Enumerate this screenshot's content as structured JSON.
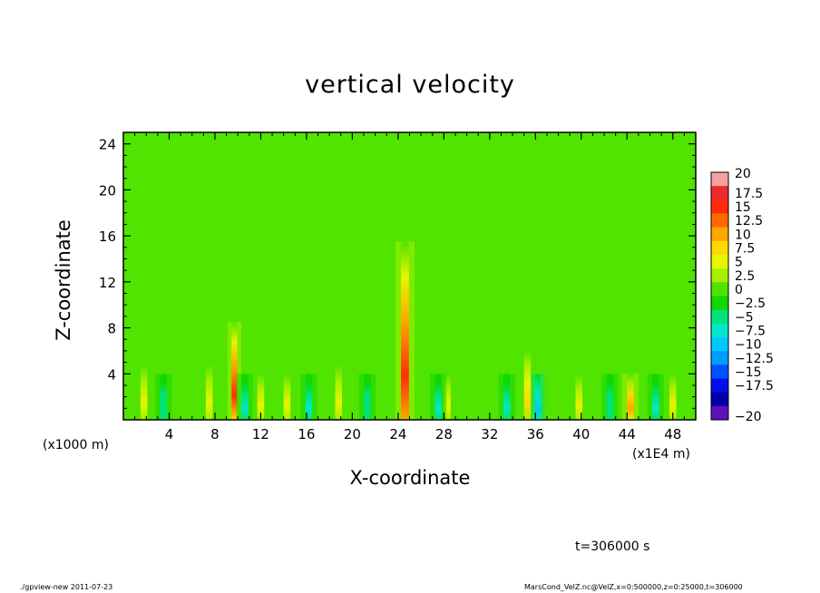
{
  "chart_data": {
    "type": "heatmap",
    "title": "vertical velocity",
    "xlabel": "X-coordinate",
    "ylabel": "Z-coordinate",
    "x_multiplier": "(x1E4 m)",
    "y_multiplier": "(x1000 m)",
    "xlim": [
      0,
      50
    ],
    "ylim": [
      0,
      25
    ],
    "x_ticks": [
      4,
      8,
      12,
      16,
      20,
      24,
      28,
      32,
      36,
      40,
      44,
      48
    ],
    "y_ticks": [
      4,
      8,
      12,
      16,
      20,
      24
    ],
    "colorbar": {
      "levels": [
        20,
        17.5,
        15,
        12.5,
        10,
        7.5,
        5,
        2.5,
        0,
        -2.5,
        -5,
        -7.5,
        -10,
        -12.5,
        -15,
        -17.5,
        -20
      ],
      "level_labels": [
        "20",
        "17.5",
        "15",
        "12.5",
        "10",
        "7.5",
        "5",
        "2.5",
        "0",
        "−2.5",
        "−5",
        "−7.5",
        "−10",
        "−12.5",
        "−15",
        "−17.5",
        "−20"
      ],
      "colors": [
        "#f4a0a0",
        "#ee2a2a",
        "#ff2c0c",
        "#ff6a00",
        "#ffa600",
        "#ffd800",
        "#e8f400",
        "#a6f000",
        "#50e400",
        "#10d800",
        "#00e27a",
        "#00e8c8",
        "#00c8ff",
        "#009cff",
        "#0050ff",
        "#0010e8",
        "#0000a8",
        "#6010b8"
      ]
    },
    "field": {
      "background_value": 0,
      "features": [
        {
          "x": 24.6,
          "z_top": 15.5,
          "amplitude": 17,
          "width": 0.35
        },
        {
          "x": 9.7,
          "z_top": 8.5,
          "amplitude": 15,
          "width": 0.25
        },
        {
          "x": 44.3,
          "z_top": 4,
          "amplitude": 12,
          "width": 0.3
        },
        {
          "x": 35.3,
          "z_top": 6,
          "amplitude": 8,
          "width": 0.3
        },
        {
          "x": 7.5,
          "z_top": 6,
          "amplitude": 7,
          "width": 0.3
        },
        {
          "x": 1.8,
          "z_top": 6,
          "amplitude": 6,
          "width": 0.3
        },
        {
          "x": 18.8,
          "z_top": 6,
          "amplitude": 6,
          "width": 0.3
        },
        {
          "x": 28.3,
          "z_top": 5,
          "amplitude": 6,
          "width": 0.3
        },
        {
          "x": 14.3,
          "z_top": 5,
          "amplitude": 5,
          "width": 0.3
        },
        {
          "x": 39.8,
          "z_top": 5,
          "amplitude": 6,
          "width": 0.3
        },
        {
          "x": 12.0,
          "z_top": 5,
          "amplitude": 5,
          "width": 0.3
        },
        {
          "x": 48.0,
          "z_top": 5,
          "amplitude": 5,
          "width": 0.3
        },
        {
          "x": 36.2,
          "z_top": 4,
          "amplitude": -10,
          "width": 0.25
        },
        {
          "x": 10.6,
          "z_top": 4,
          "amplitude": -7,
          "width": 0.3
        },
        {
          "x": 27.5,
          "z_top": 4,
          "amplitude": -7,
          "width": 0.3
        },
        {
          "x": 33.5,
          "z_top": 4,
          "amplitude": -6,
          "width": 0.3
        },
        {
          "x": 16.2,
          "z_top": 4,
          "amplitude": -6,
          "width": 0.3
        },
        {
          "x": 46.5,
          "z_top": 4,
          "amplitude": -6,
          "width": 0.3
        },
        {
          "x": 3.5,
          "z_top": 4,
          "amplitude": -5,
          "width": 0.3
        },
        {
          "x": 21.3,
          "z_top": 4,
          "amplitude": -5,
          "width": 0.3
        },
        {
          "x": 42.5,
          "z_top": 4,
          "amplitude": -5,
          "width": 0.3
        }
      ]
    }
  },
  "labels": {
    "timestamp": "t=306000 s",
    "footer_left": "./gpview-new   2011-07-23",
    "footer_right": "MarsCond_VelZ.nc@VelZ,x=0:500000,z=0:25000,t=306000"
  }
}
